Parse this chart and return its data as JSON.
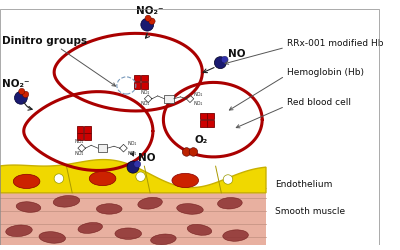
{
  "bg_color": "#ffffff",
  "rbc_color": "#aa0000",
  "hb_color": "#cc0000",
  "no2_blue": "#1a1a70",
  "no2_red": "#cc2200",
  "no_blue1": "#1a1a70",
  "no_blue2": "#3333aa",
  "o2_red": "#bb2200",
  "endo_fill": "#f0d800",
  "endo_outline": "#c8b000",
  "endo_oval": "#cc2200",
  "smooth_fill": "#e8b0a0",
  "smooth_line": "#c09080",
  "smooth_oval": "#8b3030",
  "molecule_fill": "#eeeeee",
  "molecule_edge": "#444444",
  "circle_detail": "#7799bb",
  "arrow_color": "#222222",
  "label_color": "#111111",
  "labels": {
    "dinitro": "Dinitro groups",
    "no2_top": "NO₂⁻",
    "no2_left": "NO₂⁻",
    "no_top": "NO",
    "no_bottom": "NO",
    "o2": "O₂",
    "rrx": "RRx-001 modified Hb",
    "hemoglobin": "Hemoglobin (Hb)",
    "rbc": "Red blood cell",
    "endothelium": "Endothelium",
    "smooth": "Smooth muscle"
  },
  "fs_bold": 7.5,
  "fs_label": 7,
  "fs_side": 6.5
}
